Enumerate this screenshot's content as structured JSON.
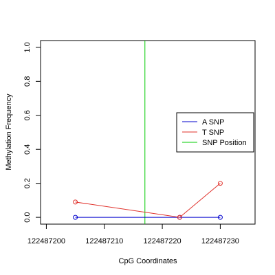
{
  "chart_data": {
    "type": "line",
    "title": "",
    "xlabel": "CpG Coordinates",
    "ylabel": "Methylation Frequency",
    "xlim": [
      122487199,
      122487236
    ],
    "ylim": [
      -0.04,
      1.04
    ],
    "x_ticks": [
      122487200,
      122487210,
      122487220,
      122487230
    ],
    "x_tick_labels": [
      "122487200",
      "122487210",
      "122487220",
      "122487230"
    ],
    "y_ticks": [
      0.0,
      0.2,
      0.4,
      0.6,
      0.8,
      1.0
    ],
    "y_tick_labels": [
      "0.0",
      "0.2",
      "0.4",
      "0.6",
      "0.8",
      "1.0"
    ],
    "grid": false,
    "legend_position": "right",
    "series": [
      {
        "name": "A SNP",
        "color": "#0000cd",
        "x": [
          122487205,
          122487223,
          122487230
        ],
        "y": [
          0.0,
          0.0,
          0.0
        ]
      },
      {
        "name": "T SNP",
        "color": "#e0302a",
        "x": [
          122487205,
          122487223,
          122487230
        ],
        "y": [
          0.09,
          0.0,
          0.2
        ]
      }
    ],
    "snp_position": {
      "name": "SNP Position",
      "color": "#00cc00",
      "x": 122487217
    }
  }
}
